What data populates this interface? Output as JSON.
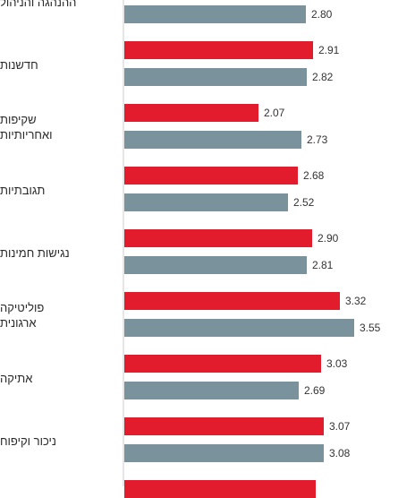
{
  "chart_data": {
    "type": "bar",
    "orientation": "horizontal",
    "colors": {
      "series_a": "#e21b2d",
      "series_b": "#7a929c"
    },
    "categories": [
      "ההנהגה והניהול",
      "חדשנות",
      "שקיפות ואחריותיות",
      "תגובתיות",
      "נגישות חמינות",
      "פוליטיקה ארגונית",
      "אתיקה",
      "ניכור וקיפוח",
      ""
    ],
    "category_lines": [
      [
        "ההנהגה והניהול"
      ],
      [
        "חדשנות"
      ],
      [
        "שקיפות",
        "ואחריותיות"
      ],
      [
        "תגובתיות"
      ],
      [
        "נגישות חמינות"
      ],
      [
        "פוליטיקה",
        "ארגונית"
      ],
      [
        "אתיקה"
      ],
      [
        "ניכור וקיפוח"
      ],
      []
    ],
    "series": [
      {
        "color": "#e21b2d",
        "values": [
          null,
          2.91,
          2.07,
          2.68,
          2.9,
          3.32,
          3.03,
          3.07,
          2.95
        ]
      },
      {
        "color": "#7a929c",
        "values": [
          2.8,
          2.82,
          2.73,
          2.52,
          2.81,
          3.55,
          2.69,
          3.08,
          null
        ]
      }
    ],
    "value_labels": [
      [
        null,
        "2.91",
        "2.07",
        "2.68",
        "2.90",
        "3.32",
        "3.03",
        "3.07",
        ""
      ],
      [
        "2.80",
        "2.82",
        "2.73",
        "2.52",
        "2.81",
        "3.55",
        "2.69",
        "3.08",
        null
      ]
    ],
    "xlim": [
      0,
      4
    ]
  }
}
